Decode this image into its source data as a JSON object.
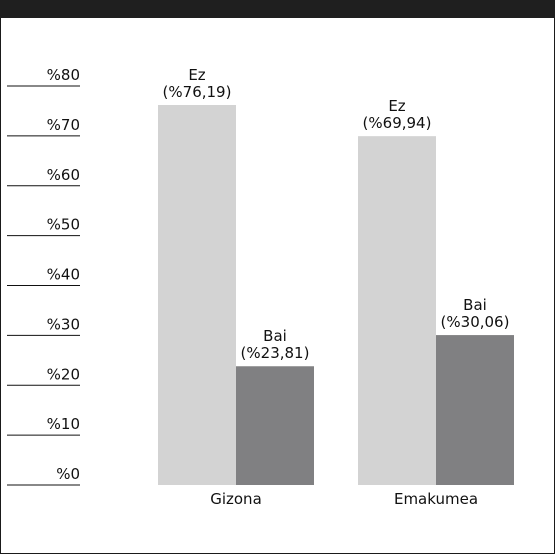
{
  "chart_data": {
    "type": "bar",
    "title": "",
    "xlabel": "",
    "ylabel": "",
    "ylim": [
      0,
      80
    ],
    "yticks": [
      {
        "value": 0,
        "label": "%0"
      },
      {
        "value": 10,
        "label": "%10"
      },
      {
        "value": 20,
        "label": "%20"
      },
      {
        "value": 30,
        "label": "%30"
      },
      {
        "value": 40,
        "label": "%40"
      },
      {
        "value": 50,
        "label": "%50"
      },
      {
        "value": 60,
        "label": "%60"
      },
      {
        "value": 70,
        "label": "%70"
      },
      {
        "value": 80,
        "label": "%80"
      }
    ],
    "categories": [
      "Gizona",
      "Emakumea"
    ],
    "series": [
      {
        "name": "Ez",
        "color": "#d3d3d3",
        "values": [
          76.19,
          69.94
        ],
        "data_labels": [
          "(%76,19)",
          "(%69,94)"
        ]
      },
      {
        "name": "Bai",
        "color": "#808082",
        "values": [
          23.81,
          30.06
        ],
        "data_labels": [
          "(%23,81)",
          "(%30,06)"
        ]
      }
    ],
    "grid": false,
    "legend": "none"
  }
}
